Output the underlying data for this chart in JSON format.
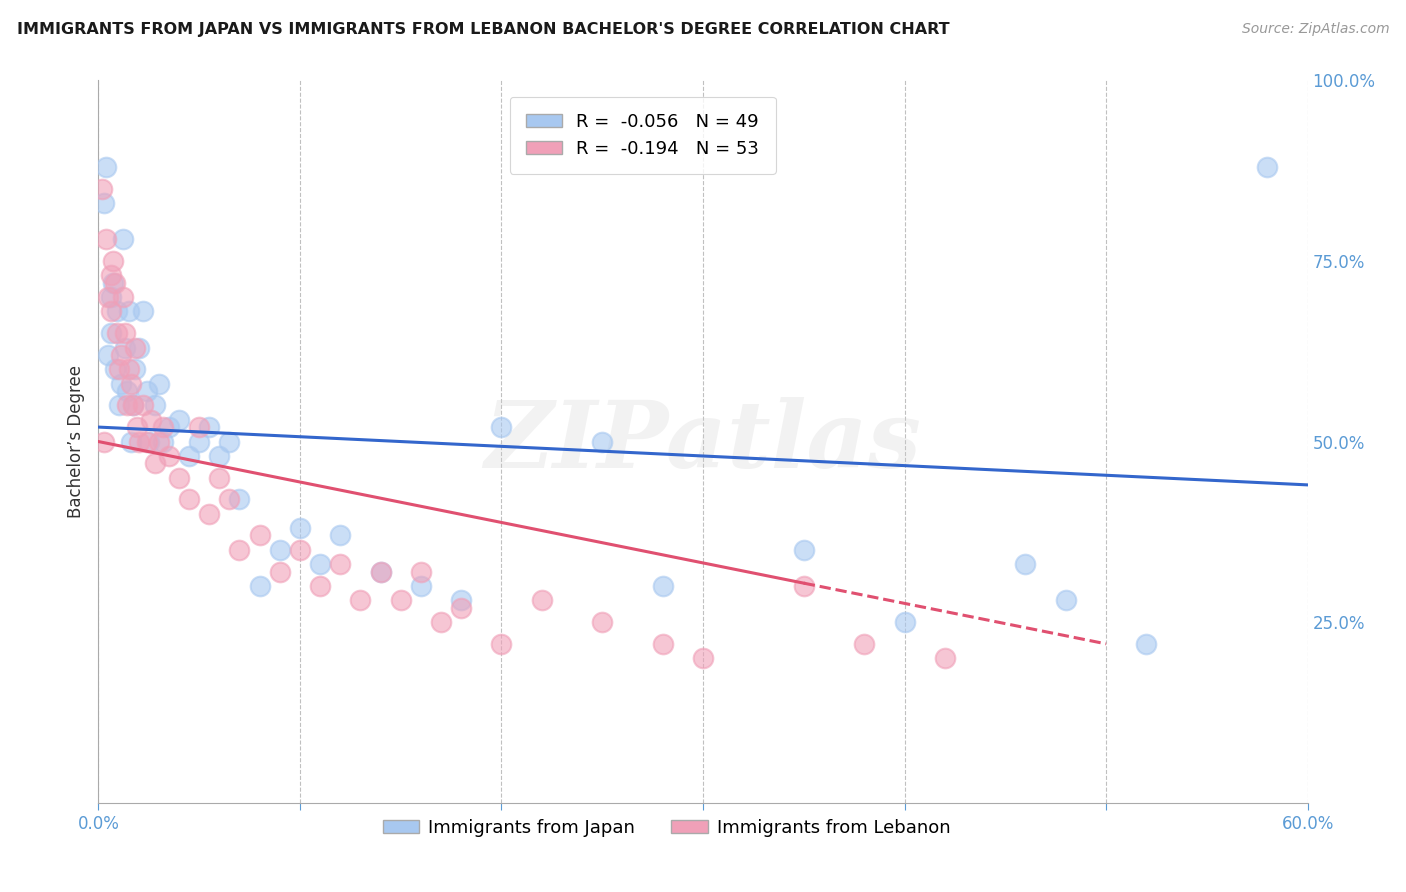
{
  "title": "IMMIGRANTS FROM JAPAN VS IMMIGRANTS FROM LEBANON BACHELOR'S DEGREE CORRELATION CHART",
  "source": "Source: ZipAtlas.com",
  "xlabel_japan": "Immigrants from Japan",
  "xlabel_lebanon": "Immigrants from Lebanon",
  "ylabel": "Bachelor’s Degree",
  "xlim": [
    0.0,
    0.6
  ],
  "ylim": [
    0.0,
    1.0
  ],
  "japan_R": -0.056,
  "japan_N": 49,
  "lebanon_R": -0.194,
  "lebanon_N": 53,
  "japan_color": "#A8C8F0",
  "lebanon_color": "#F0A0B8",
  "japan_line_color": "#3366CC",
  "lebanon_line_color": "#E05070",
  "watermark": "ZIPatlas",
  "japan_line_x0": 0.0,
  "japan_line_y0": 0.52,
  "japan_line_x1": 0.6,
  "japan_line_y1": 0.44,
  "lebanon_line_x0": 0.0,
  "lebanon_line_y0": 0.5,
  "lebanon_line_x1": 0.5,
  "lebanon_line_y1": 0.22,
  "lebanon_line_solid_x1": 0.35,
  "japan_x": [
    0.003,
    0.004,
    0.005,
    0.006,
    0.006,
    0.007,
    0.008,
    0.009,
    0.01,
    0.011,
    0.012,
    0.013,
    0.014,
    0.015,
    0.016,
    0.017,
    0.018,
    0.02,
    0.022,
    0.024,
    0.025,
    0.028,
    0.03,
    0.032,
    0.035,
    0.04,
    0.045,
    0.05,
    0.055,
    0.06,
    0.065,
    0.07,
    0.08,
    0.09,
    0.1,
    0.11,
    0.12,
    0.14,
    0.16,
    0.18,
    0.2,
    0.25,
    0.28,
    0.35,
    0.4,
    0.46,
    0.48,
    0.52,
    0.58
  ],
  "japan_y": [
    0.83,
    0.88,
    0.62,
    0.7,
    0.65,
    0.72,
    0.6,
    0.68,
    0.55,
    0.58,
    0.78,
    0.63,
    0.57,
    0.68,
    0.5,
    0.55,
    0.6,
    0.63,
    0.68,
    0.57,
    0.5,
    0.55,
    0.58,
    0.5,
    0.52,
    0.53,
    0.48,
    0.5,
    0.52,
    0.48,
    0.5,
    0.42,
    0.3,
    0.35,
    0.38,
    0.33,
    0.37,
    0.32,
    0.3,
    0.28,
    0.52,
    0.5,
    0.3,
    0.35,
    0.25,
    0.33,
    0.28,
    0.22,
    0.88
  ],
  "lebanon_x": [
    0.002,
    0.003,
    0.004,
    0.005,
    0.006,
    0.006,
    0.007,
    0.008,
    0.009,
    0.01,
    0.011,
    0.012,
    0.013,
    0.014,
    0.015,
    0.016,
    0.017,
    0.018,
    0.019,
    0.02,
    0.022,
    0.024,
    0.026,
    0.028,
    0.03,
    0.032,
    0.035,
    0.04,
    0.045,
    0.05,
    0.055,
    0.06,
    0.065,
    0.07,
    0.08,
    0.09,
    0.1,
    0.11,
    0.12,
    0.13,
    0.14,
    0.15,
    0.16,
    0.17,
    0.18,
    0.2,
    0.22,
    0.25,
    0.28,
    0.3,
    0.35,
    0.38,
    0.42
  ],
  "lebanon_y": [
    0.85,
    0.5,
    0.78,
    0.7,
    0.73,
    0.68,
    0.75,
    0.72,
    0.65,
    0.6,
    0.62,
    0.7,
    0.65,
    0.55,
    0.6,
    0.58,
    0.55,
    0.63,
    0.52,
    0.5,
    0.55,
    0.5,
    0.53,
    0.47,
    0.5,
    0.52,
    0.48,
    0.45,
    0.42,
    0.52,
    0.4,
    0.45,
    0.42,
    0.35,
    0.37,
    0.32,
    0.35,
    0.3,
    0.33,
    0.28,
    0.32,
    0.28,
    0.32,
    0.25,
    0.27,
    0.22,
    0.28,
    0.25,
    0.22,
    0.2,
    0.3,
    0.22,
    0.2
  ]
}
